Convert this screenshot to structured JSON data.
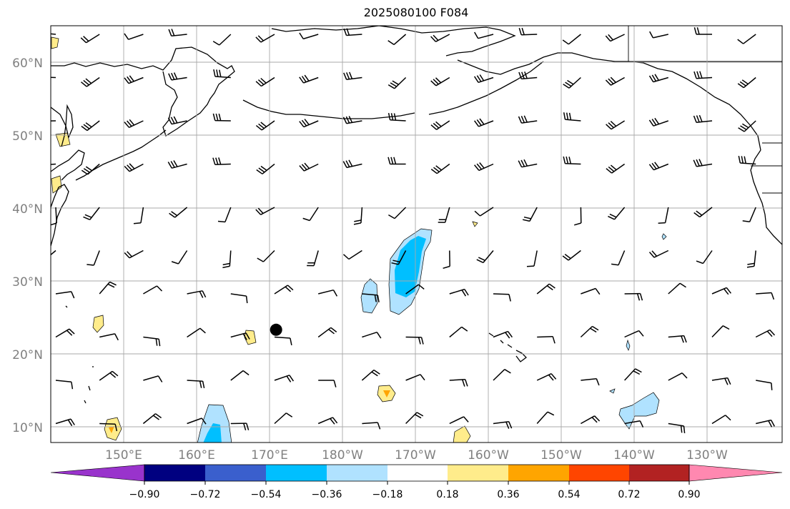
{
  "title": "2025080100 F084",
  "map": {
    "lat_labels": [
      "60°N",
      "50°N",
      "40°N",
      "30°N",
      "20°N",
      "10°N"
    ],
    "lon_labels": [
      "150°E",
      "160°E",
      "170°E",
      "180°W",
      "170°W",
      "160°W",
      "150°W",
      "140°W",
      "130°W"
    ],
    "marker": {
      "lat": 23.3,
      "lon": 170.9,
      "label": "",
      "color": "#000000"
    }
  },
  "colorbar": {
    "tick_labels": [
      "−0.90",
      "−0.72",
      "−0.54",
      "−0.36",
      "−0.18",
      "0.18",
      "0.36",
      "0.54",
      "0.72",
      "0.90"
    ],
    "colors": [
      "#9933cc",
      "#000080",
      "#3a5fcd",
      "#00bfff",
      "#b0e2ff",
      "#ffffff",
      "#ffec8b",
      "#ffa500",
      "#ff4500",
      "#b22222",
      "#ff88b0"
    ]
  }
}
